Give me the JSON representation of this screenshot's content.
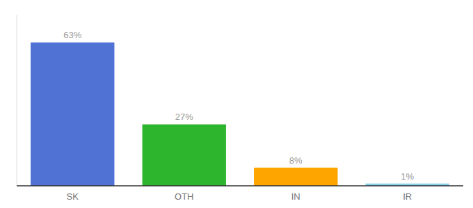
{
  "chart_data": {
    "type": "bar",
    "categories": [
      "SK",
      "OTH",
      "IN",
      "IR"
    ],
    "values": [
      63,
      27,
      8,
      1
    ],
    "value_labels": [
      "63%",
      "27%",
      "8%",
      "1%"
    ],
    "colors": [
      "#4f72d4",
      "#2db52d",
      "#ffa500",
      "#87ceeb"
    ],
    "ylim": [
      0,
      75
    ],
    "data_labels": true,
    "tick_labels": "x"
  }
}
